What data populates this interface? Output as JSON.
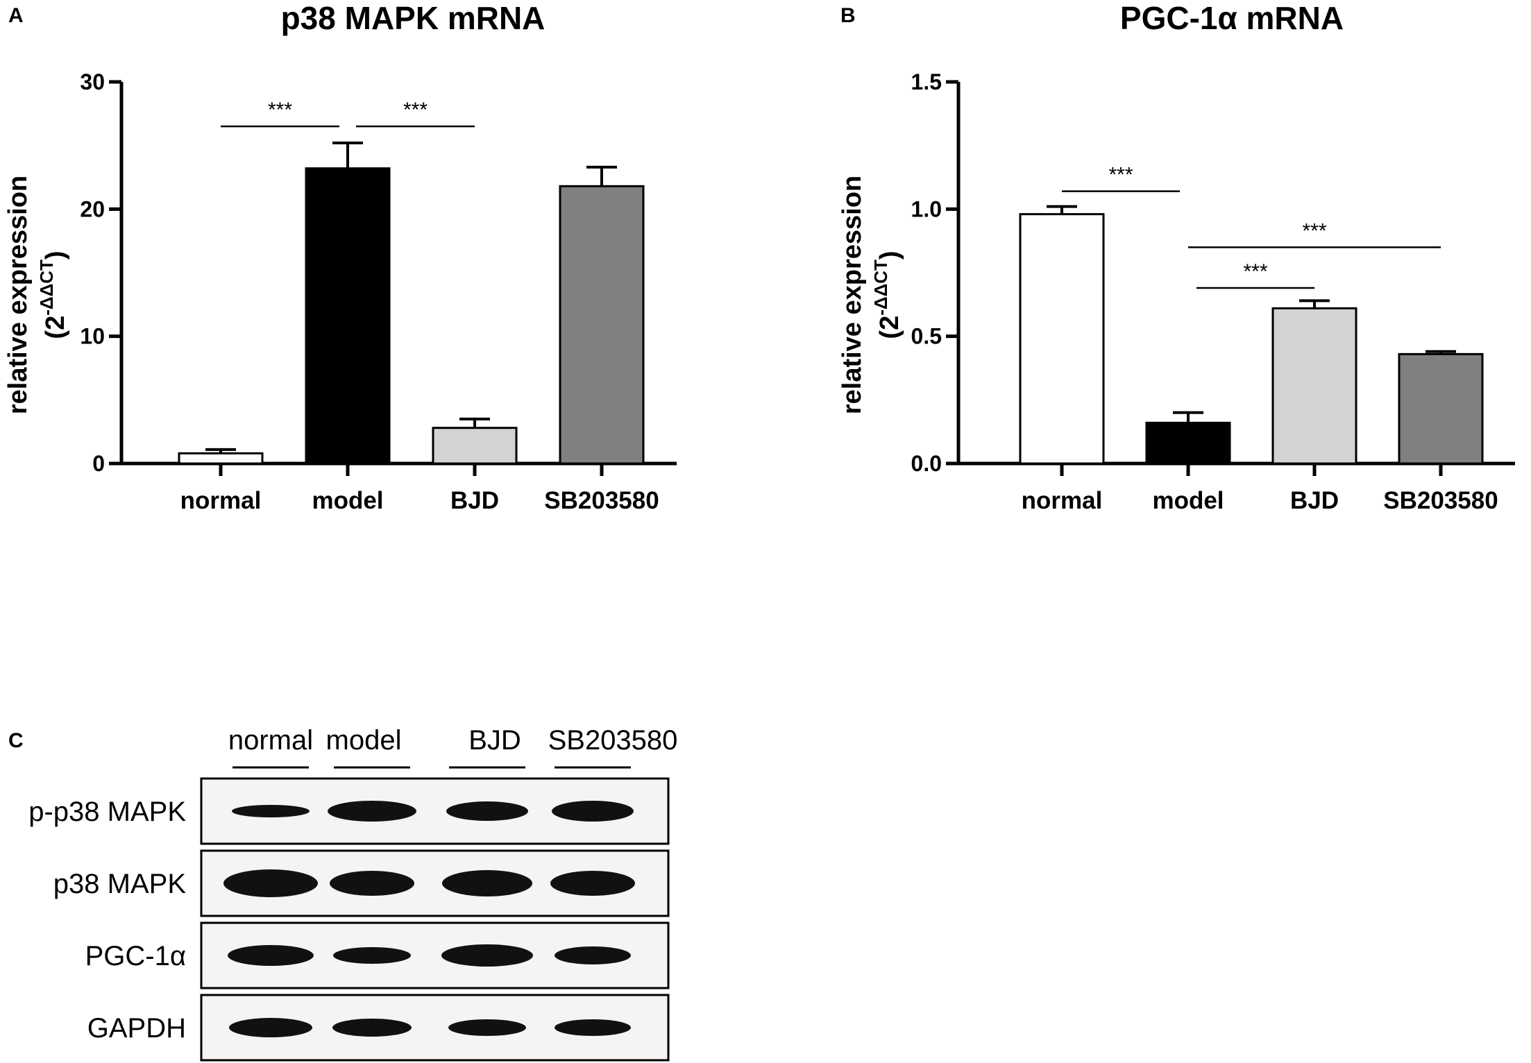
{
  "chart_data": [
    {
      "type": "bar",
      "panel": "A",
      "title": "p38 MAPK mRNA",
      "ylabel": "relative expression",
      "ylabel_unit_base": "(2",
      "ylabel_unit_sup": "-ΔΔCT",
      "ylabel_unit_close": ")",
      "categories": [
        "normal",
        "model",
        "BJD",
        "SB203580"
      ],
      "values": [
        0.8,
        23.2,
        2.8,
        21.8
      ],
      "errors": [
        0.3,
        2.0,
        0.7,
        1.5
      ],
      "ylim": [
        0,
        30
      ],
      "yticks": [
        "0",
        "10",
        "20",
        "30"
      ],
      "ytick_values": [
        0,
        10,
        20,
        30
      ],
      "significance": [
        {
          "from": 0,
          "to": 1,
          "label": "***",
          "y": 26.5
        },
        {
          "from": 1,
          "to": 2,
          "label": "***",
          "y": 26.5
        }
      ]
    },
    {
      "type": "bar",
      "panel": "B",
      "title": "PGC-1α mRNA",
      "ylabel": "relative expression",
      "ylabel_unit_base": "(2",
      "ylabel_unit_sup": "-ΔΔCT",
      "ylabel_unit_close": ")",
      "categories": [
        "normal",
        "model",
        "BJD",
        "SB203580"
      ],
      "values": [
        0.98,
        0.16,
        0.61,
        0.43
      ],
      "errors": [
        0.03,
        0.04,
        0.03,
        0.01
      ],
      "ylim": [
        0,
        1.5
      ],
      "yticks": [
        "0.0",
        "0.5",
        "1.0",
        "1.5"
      ],
      "ytick_values": [
        0,
        0.5,
        1.0,
        1.5
      ],
      "significance": [
        {
          "from": 0,
          "to": 1,
          "label": "***",
          "y": 1.07
        },
        {
          "from": 1,
          "to": 2,
          "label": "***",
          "y": 0.69
        },
        {
          "from": 1,
          "to": 3,
          "label": "***",
          "y": 0.85
        }
      ]
    }
  ],
  "colors": {
    "normal": "#ffffff",
    "model": "#000000",
    "BJD": "#d3d3d3",
    "SB203580": "#808080",
    "stroke": "#000000"
  },
  "blot": {
    "panel": "C",
    "lanes": [
      "normal",
      "model",
      "BJD",
      "SB203580"
    ],
    "rows": [
      "p-p38 MAPK",
      "p38 MAPK",
      "PGC-1α",
      "GAPDH"
    ]
  }
}
